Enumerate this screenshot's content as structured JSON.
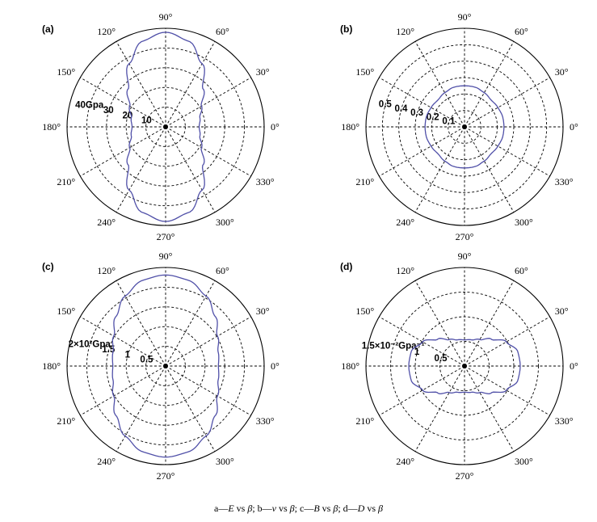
{
  "caption": {
    "a_prefix": "a—",
    "a_var": "E",
    "a_vs": " vs ",
    "a_beta": "β",
    "b_prefix": "; b—",
    "b_var": "v",
    "b_vs": " vs ",
    "b_beta": "β",
    "c_prefix": "; c—",
    "c_var": "B",
    "c_vs": " vs ",
    "c_beta": "β",
    "d_prefix": "; d—",
    "d_var": "D",
    "d_vs": " vs ",
    "d_beta": "β"
  },
  "chart_data": [
    {
      "type": "polar",
      "panel_label": "(a)",
      "angle_unit": "degree",
      "angle_ticks": [
        0,
        30,
        60,
        90,
        120,
        150,
        180,
        210,
        240,
        270,
        300,
        330
      ],
      "angle_tick_labels": [
        "0°",
        "30°",
        "60°",
        "90°",
        "120°",
        "150°",
        "180°",
        "210°",
        "240°",
        "270°",
        "300°",
        "330°"
      ],
      "rmax": 50,
      "r_ticks": [
        10,
        20,
        30,
        40
      ],
      "r_tick_labels": [
        "10",
        "20",
        "30",
        "40Gpa"
      ],
      "line_color": "#5050a8",
      "series": [
        {
          "theta": [
            0,
            15,
            30,
            45,
            60,
            75,
            90,
            105,
            120,
            135,
            150,
            165,
            180,
            195,
            210,
            225,
            240,
            255,
            270,
            285,
            300,
            315,
            330,
            345
          ],
          "r": [
            17,
            18,
            21,
            27,
            37,
            45,
            48,
            45,
            37,
            27,
            21,
            18,
            17,
            18,
            21,
            27,
            37,
            45,
            48,
            45,
            37,
            27,
            21,
            18
          ]
        }
      ]
    },
    {
      "type": "polar",
      "panel_label": "(b)",
      "angle_unit": "degree",
      "angle_ticks": [
        0,
        30,
        60,
        90,
        120,
        150,
        180,
        210,
        240,
        270,
        300,
        330
      ],
      "angle_tick_labels": [
        "0°",
        "30°",
        "60°",
        "90°",
        "120°",
        "150°",
        "180°",
        "210°",
        "240°",
        "270°",
        "300°",
        "330°"
      ],
      "rmax": 0.6,
      "r_ticks": [
        0.1,
        0.2,
        0.3,
        0.4,
        0.5
      ],
      "r_tick_labels": [
        "0.1",
        "0.2",
        "0.3",
        "0.4",
        "0.5"
      ],
      "line_color": "#5050a8",
      "series": [
        {
          "theta": [
            0,
            15,
            30,
            45,
            60,
            75,
            90,
            105,
            120,
            135,
            150,
            165,
            180,
            195,
            210,
            225,
            240,
            255,
            270,
            285,
            300,
            315,
            330,
            345
          ],
          "r": [
            0.24,
            0.24,
            0.235,
            0.23,
            0.24,
            0.25,
            0.25,
            0.25,
            0.24,
            0.23,
            0.235,
            0.24,
            0.24,
            0.24,
            0.235,
            0.23,
            0.24,
            0.25,
            0.25,
            0.25,
            0.24,
            0.23,
            0.235,
            0.24
          ]
        }
      ]
    },
    {
      "type": "polar",
      "panel_label": "(c)",
      "angle_unit": "degree",
      "angle_ticks": [
        0,
        30,
        60,
        90,
        120,
        150,
        180,
        210,
        240,
        270,
        300,
        330
      ],
      "angle_tick_labels": [
        "0°",
        "30°",
        "60°",
        "90°",
        "120°",
        "150°",
        "180°",
        "210°",
        "240°",
        "270°",
        "300°",
        "330°"
      ],
      "rmax": 2.5,
      "r_ticks": [
        0.5,
        1,
        1.5,
        2
      ],
      "r_tick_labels": [
        "0.5",
        "1",
        "1.5",
        "2×10²Gpa"
      ],
      "line_color": "#5050a8",
      "series": [
        {
          "theta": [
            0,
            15,
            30,
            45,
            60,
            75,
            90,
            105,
            120,
            135,
            150,
            165,
            180,
            195,
            210,
            225,
            240,
            255,
            270,
            285,
            300,
            315,
            330,
            345
          ],
          "r": [
            1.34,
            1.38,
            1.52,
            1.78,
            2.05,
            2.25,
            2.31,
            2.25,
            2.05,
            1.78,
            1.52,
            1.38,
            1.34,
            1.38,
            1.52,
            1.78,
            2.05,
            2.25,
            2.31,
            2.25,
            2.05,
            1.78,
            1.52,
            1.38
          ]
        }
      ]
    },
    {
      "type": "polar",
      "panel_label": "(d)",
      "angle_unit": "degree",
      "angle_ticks": [
        0,
        30,
        60,
        90,
        120,
        150,
        180,
        210,
        240,
        270,
        300,
        330
      ],
      "angle_tick_labels": [
        "0°",
        "30°",
        "60°",
        "90°",
        "120°",
        "150°",
        "180°",
        "210°",
        "240°",
        "270°",
        "300°",
        "330°"
      ],
      "rmax": 2,
      "r_ticks": [
        0.5,
        1,
        1.5
      ],
      "r_tick_labels": [
        "0.5",
        "1",
        "1.5×10⁻²Gpa⁻¹"
      ],
      "line_color": "#5050a8",
      "series": [
        {
          "theta": [
            0,
            15,
            30,
            45,
            60,
            75,
            90,
            105,
            120,
            135,
            150,
            165,
            180,
            195,
            210,
            225,
            240,
            255,
            270,
            285,
            300,
            315,
            330,
            345
          ],
          "r": [
            1.13,
            1.12,
            0.98,
            0.77,
            0.62,
            0.55,
            0.53,
            0.55,
            0.62,
            0.77,
            0.98,
            1.12,
            1.13,
            1.12,
            0.98,
            0.77,
            0.62,
            0.55,
            0.53,
            0.55,
            0.62,
            0.77,
            0.98,
            1.12
          ]
        }
      ]
    }
  ]
}
